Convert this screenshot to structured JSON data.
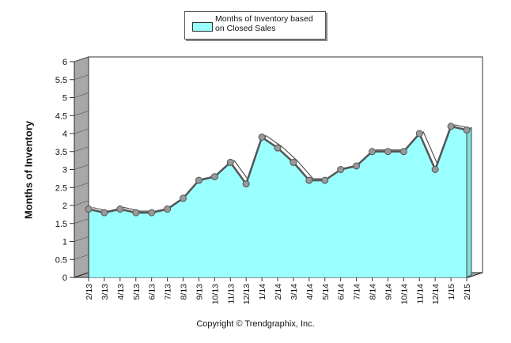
{
  "chart_data": {
    "type": "area",
    "title": "",
    "xlabel": "",
    "ylabel": "Months of Inventory",
    "ylim": [
      0,
      6
    ],
    "yticks": [
      "0",
      "0.5",
      "1",
      "1.5",
      "2",
      "2.5",
      "3",
      "3.5",
      "4",
      "4.5",
      "5",
      "5.5",
      "6"
    ],
    "categories": [
      "2/13",
      "3/13",
      "4/13",
      "5/13",
      "6/13",
      "7/13",
      "8/13",
      "9/13",
      "10/13",
      "11/13",
      "12/13",
      "1/14",
      "2/14",
      "3/14",
      "4/14",
      "5/14",
      "6/14",
      "7/14",
      "8/14",
      "9/14",
      "10/14",
      "11/14",
      "12/14",
      "1/15",
      "2/15"
    ],
    "series": [
      {
        "name": "Months of Inventory based on Closed Sales",
        "values": [
          1.9,
          1.8,
          1.9,
          1.8,
          1.8,
          1.9,
          2.2,
          2.7,
          2.8,
          3.2,
          2.6,
          3.9,
          3.6,
          3.2,
          2.7,
          2.7,
          3.0,
          3.1,
          3.5,
          3.5,
          3.5,
          4.0,
          3.0,
          4.2,
          4.1
        ]
      }
    ],
    "legend": {
      "position": "top-center",
      "label": "Months of Inventory based on Closed Sales"
    },
    "colors": {
      "fill": "#99ffff",
      "line": "#555555",
      "marker": "#999999",
      "wall": "#a8a8a8"
    }
  },
  "footer": {
    "copyright": "Copyright © Trendgraphix, Inc."
  }
}
